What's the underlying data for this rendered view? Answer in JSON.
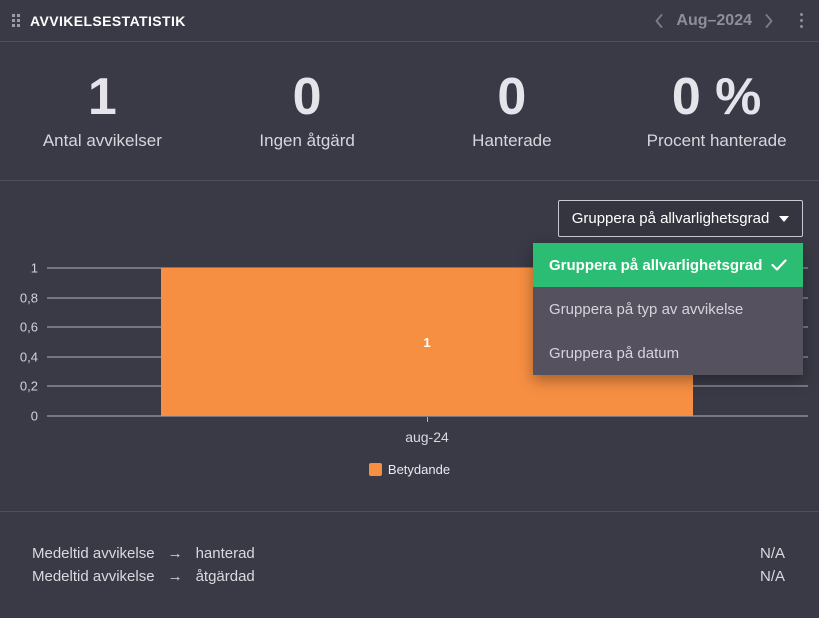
{
  "colors": {
    "bg": "#3a3a46",
    "divider": "#4e4e5c",
    "accent-orange": "#f78f42",
    "accent-green": "#2cbd74",
    "menu-bg": "#55515e",
    "grid": "#b2b2bc",
    "text-bright": "#ffffff",
    "text-muted": "#8e8e99",
    "button-border": "#c9c9d2"
  },
  "header": {
    "title": "AVVIKELSESTATISTIK",
    "period": "Aug–2024",
    "icons": [
      "drag-handle-icon",
      "chevron-left-icon",
      "chevron-right-icon",
      "kebab-menu-icon"
    ]
  },
  "stats": [
    {
      "value": "1",
      "label": "Antal avvikelser"
    },
    {
      "value": "0",
      "label": "Ingen åtgärd"
    },
    {
      "value": "0",
      "label": "Hanterade"
    },
    {
      "value": "0 %",
      "label": "Procent hanterade"
    }
  ],
  "dropdown": {
    "selected": "Gruppera på allvarlighetsgrad",
    "options": [
      {
        "label": "Gruppera på allvarlighetsgrad",
        "selected": true
      },
      {
        "label": "Gruppera på typ av avvikelse",
        "selected": false
      },
      {
        "label": "Gruppera på datum",
        "selected": false
      }
    ]
  },
  "chart_data": {
    "type": "bar",
    "title": "",
    "categories": [
      "aug-24"
    ],
    "series": [
      {
        "name": "Betydande",
        "values": [
          1
        ],
        "color": "#f78f42"
      }
    ],
    "data_labels": [
      "1"
    ],
    "xlabel": "",
    "ylabel": "",
    "ylim": [
      0,
      1
    ],
    "yticks": [
      "1",
      "0,8",
      "0,6",
      "0,4",
      "0,2",
      "0"
    ],
    "grid": true,
    "legend_position": "bottom"
  },
  "footer": {
    "rows": [
      {
        "label": "Medeltid avvikelse",
        "arrow": "→",
        "state": "hanterad",
        "value": "N/A"
      },
      {
        "label": "Medeltid avvikelse",
        "arrow": "→",
        "state": "åtgärdad",
        "value": "N/A"
      }
    ]
  }
}
